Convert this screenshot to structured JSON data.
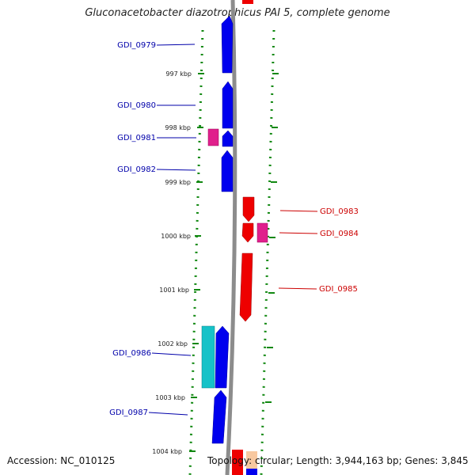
{
  "title": "Gluconacetobacter diazotrophicus PAI 5, complete genome",
  "accession": "Accession: NC_010125",
  "topology": "Topology: circular; Length: 3,944,163 bp; Genes: 3,845",
  "colors": {
    "backbone": "#8c8c8c",
    "forward_gene": "#0000ee",
    "reverse_gene": "#ee0000",
    "rna_gene": "#e0208c",
    "other_feature": "#16c2c8",
    "forward_label": "#0000aa",
    "reverse_label": "#cc0000",
    "ruler_dots": "#118811"
  },
  "ticks": [
    {
      "label": "997 kbp"
    },
    {
      "label": "998 kbp"
    },
    {
      "label": "999 kbp"
    },
    {
      "label": "1000 kbp"
    },
    {
      "label": "1001 kbp"
    },
    {
      "label": "1002 kbp"
    },
    {
      "label": "1003 kbp"
    },
    {
      "label": "1004 kbp"
    }
  ],
  "genes": [
    {
      "name": "GDI_0979",
      "strand": "forward"
    },
    {
      "name": "GDI_0980",
      "strand": "forward"
    },
    {
      "name": "GDI_0981",
      "strand": "forward"
    },
    {
      "name": "GDI_0982",
      "strand": "forward"
    },
    {
      "name": "GDI_0983",
      "strand": "reverse"
    },
    {
      "name": "GDI_0984",
      "strand": "reverse"
    },
    {
      "name": "GDI_0985",
      "strand": "reverse"
    },
    {
      "name": "GDI_0986",
      "strand": "forward"
    },
    {
      "name": "GDI_0987",
      "strand": "forward"
    }
  ]
}
